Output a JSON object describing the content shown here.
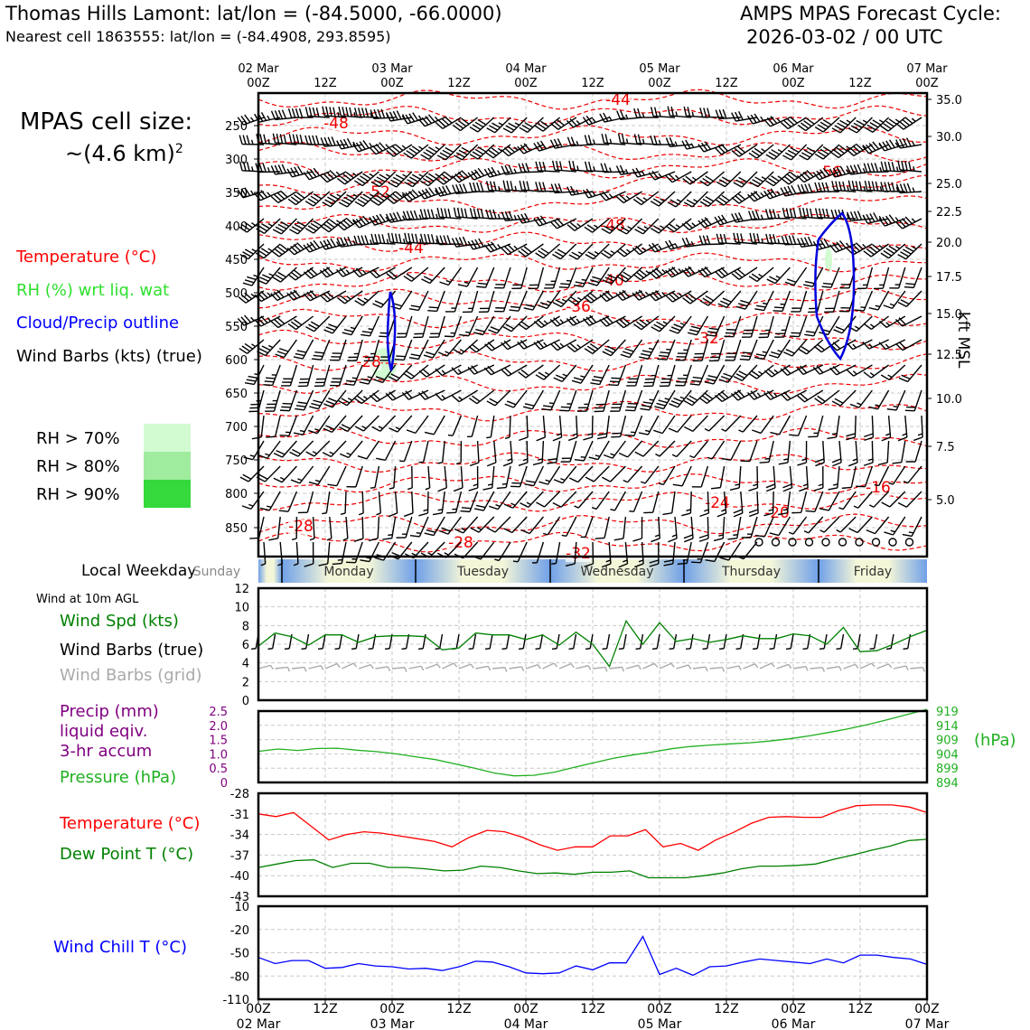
{
  "header": {
    "title_left": "Thomas Hills Lamont: lat/lon = (-84.5000, -66.0000)",
    "subtitle_left": "Nearest cell 1863555: lat/lon = (-84.4908, 293.8595)",
    "title_right_1": "AMPS MPAS Forecast Cycle:",
    "title_right_2": "2026-03-02 / 00 UTC"
  },
  "sidebar": {
    "cell_size_label": "MPAS cell size:",
    "cell_size_value": "~(4.6 km)",
    "cell_size_exp": "2",
    "legend_temp": "Temperature (°C)",
    "legend_rh": "RH (%) wrt liq. wat",
    "legend_cloud": "Cloud/Precip outline",
    "legend_wind": "Wind Barbs (kts) (true)",
    "rh_levels": [
      {
        "label": "RH > 70%",
        "color": "#d2fbd2"
      },
      {
        "label": "RH > 80%",
        "color": "#a0ec9f"
      },
      {
        "label": "RH > 90%",
        "color": "#35d93b"
      }
    ],
    "weekday_label": "Local Weekday",
    "wind_10m": "Wind at 10m AGL",
    "wind_spd": "Wind Spd (kts)",
    "wind_barbs_true": "Wind Barbs (true)",
    "wind_barbs_grid": "Wind Barbs (grid)",
    "precip_1": "Precip (mm)",
    "precip_2": "liquid eqiv.",
    "precip_3": "3-hr accum",
    "pressure": "Pressure (hPa)",
    "temp": "Temperature (°C)",
    "dewpt": "Dew Point T (°C)",
    "windchill": "Wind Chill T (°C)"
  },
  "colors": {
    "temperature": "#ff0000",
    "rh": "#2ecc40",
    "cloud": "#0000dd",
    "wind": "#000000",
    "wind_grid": "#aaaaaa",
    "precip": "#800080",
    "pressure": "#20b020",
    "dewpoint": "#008000",
    "windchill": "#0000ff"
  },
  "time_axis": {
    "top_ticks": [
      {
        "d": "02 Mar",
        "t": "00Z"
      },
      {
        "d": "",
        "t": "12Z"
      },
      {
        "d": "03 Mar",
        "t": "00Z"
      },
      {
        "d": "",
        "t": "12Z"
      },
      {
        "d": "04 Mar",
        "t": "00Z"
      },
      {
        "d": "",
        "t": "12Z"
      },
      {
        "d": "05 Mar",
        "t": "00Z"
      },
      {
        "d": "",
        "t": "12Z"
      },
      {
        "d": "06 Mar",
        "t": "00Z"
      },
      {
        "d": "",
        "t": "12Z"
      },
      {
        "d": "07 Mar",
        "t": "00Z"
      }
    ],
    "weekdays": [
      "Sunday",
      "Monday",
      "Tuesday",
      "Wednesday",
      "Thursday",
      "Friday"
    ]
  },
  "chart_data": [
    {
      "type": "contour",
      "name": "cross-section",
      "y_left_ticks": [
        "250",
        "300",
        "350",
        "400",
        "450",
        "500",
        "550",
        "600",
        "650",
        "700",
        "750",
        "800",
        "850"
      ],
      "y_right_ticks": [
        "35.0",
        "30.0",
        "25.0",
        "22.5",
        "20.0",
        "17.5",
        "15.0",
        "12.5",
        "10.0",
        "7.5",
        "5.0"
      ],
      "y_right_label": "kft MSL",
      "contour_labels": [
        "-44",
        "-48",
        "-56",
        "-52",
        "-48",
        "-44",
        "-40",
        "-36",
        "-32",
        "-28",
        "-24",
        "-20",
        "-16",
        "-28",
        "-28",
        "-32"
      ],
      "rh_shading": "RH > 70% patches near 03 Mar 00Z at 600 hPa and near 06 Mar 12Z at 450 hPa",
      "cloud_outlines": "two thin cloud outlines: 03 Mar 00Z (500–600 hPa) and 06 Mar 06Z–12Z (400–600 hPa)"
    },
    {
      "type": "line",
      "name": "wind-speed",
      "ylim": [
        0,
        12
      ],
      "yticks": [
        "0",
        "2",
        "4",
        "6",
        "8",
        "10",
        "12"
      ],
      "x_hours": [
        0,
        3,
        6,
        9,
        12,
        15,
        18,
        21,
        24,
        27,
        30,
        33,
        36,
        39,
        42,
        45,
        48,
        51,
        54,
        57,
        60,
        63,
        66,
        69,
        72,
        75,
        78,
        81,
        84,
        87,
        90,
        93,
        96,
        99,
        102,
        105,
        108,
        111,
        114,
        117,
        120
      ],
      "series": [
        {
          "values": [
            5.8,
            7.2,
            6.8,
            5.9,
            7.0,
            7.0,
            6.2,
            6.8,
            6.9,
            6.9,
            6.8,
            5.4,
            5.6,
            7.2,
            7.0,
            7.0,
            6.5,
            7.0,
            5.9,
            7.3,
            6.0,
            3.6,
            8.5,
            6.0,
            8.3,
            6.3,
            6.6,
            6.2,
            6.5,
            6.9,
            6.6,
            6.6,
            7.1,
            6.9,
            6.0,
            7.8,
            5.2,
            5.3,
            6.0,
            6.8,
            7.5
          ]
        }
      ]
    },
    {
      "type": "line",
      "name": "precip-pressure",
      "y_left_ticks": [
        "0",
        "0.5",
        "1.0",
        "1.5",
        "2.0",
        "2.5"
      ],
      "y_right_ticks": [
        "894",
        "899",
        "904",
        "909",
        "914",
        "919"
      ],
      "y_right_label": "(hPa)",
      "series": [
        {
          "values": [
            904.9,
            905.7,
            905.2,
            905.9,
            906.0,
            905.3,
            904.8,
            904.0,
            903.0,
            902.0,
            900.5,
            899.0,
            897.3,
            896.3,
            896.5,
            897.5,
            899.2,
            900.8,
            902.4,
            903.6,
            904.6,
            905.8,
            906.6,
            907.1,
            907.5,
            907.9,
            908.5,
            909.3,
            910.3,
            911.5,
            912.8,
            914.3,
            916.0,
            917.8,
            919.6
          ]
        }
      ],
      "pressure_ylim": [
        894,
        919
      ]
    },
    {
      "type": "line",
      "name": "temperature-dewpoint",
      "ylim": [
        -43,
        -28
      ],
      "yticks": [
        "-28",
        "-31",
        "-34",
        "-37",
        "-40",
        "-43"
      ],
      "series": [
        {
          "name": "Temperature",
          "values": [
            -31.0,
            -31.4,
            -30.8,
            -32.8,
            -34.8,
            -34.0,
            -33.6,
            -33.8,
            -34.2,
            -34.6,
            -35.0,
            -35.8,
            -34.4,
            -33.4,
            -33.6,
            -34.4,
            -35.5,
            -36.3,
            -35.8,
            -35.8,
            -34.2,
            -34.2,
            -33.3,
            -35.8,
            -35.3,
            -36.3,
            -34.8,
            -33.7,
            -32.4,
            -31.5,
            -31.4,
            -31.5,
            -31.5,
            -30.5,
            -29.8,
            -29.7,
            -29.7,
            -30.0,
            -30.8
          ]
        },
        {
          "name": "Dew Point",
          "values": [
            -38.8,
            -38.3,
            -37.8,
            -37.7,
            -38.8,
            -38.2,
            -38.2,
            -38.8,
            -38.8,
            -39.0,
            -39.3,
            -39.2,
            -38.6,
            -38.8,
            -39.3,
            -39.7,
            -39.6,
            -39.8,
            -39.5,
            -39.5,
            -39.3,
            -40.3,
            -40.3,
            -40.3,
            -40.0,
            -39.6,
            -39.0,
            -38.6,
            -38.6,
            -38.5,
            -38.3,
            -37.6,
            -37.0,
            -36.3,
            -35.7,
            -34.9,
            -34.7
          ]
        }
      ]
    },
    {
      "type": "line",
      "name": "wind-chill",
      "ylim": [
        -110,
        10
      ],
      "yticks": [
        "10",
        "-20",
        "-50",
        "-80",
        "-110"
      ],
      "series": [
        {
          "name": "Wind Chill",
          "values": [
            -56,
            -64,
            -60,
            -60,
            -70,
            -69,
            -64,
            -67,
            -68,
            -71,
            -70,
            -73,
            -68,
            -61,
            -62,
            -68,
            -76,
            -77,
            -76,
            -67,
            -72,
            -63,
            -63,
            -29,
            -78,
            -70,
            -79,
            -68,
            -67,
            -62,
            -58,
            -60,
            -62,
            -64,
            -58,
            -63,
            -53,
            -53,
            -56,
            -58,
            -65
          ]
        }
      ]
    }
  ],
  "bottom_axis": {
    "ticks": [
      {
        "t": "00Z",
        "d": "02 Mar"
      },
      {
        "t": "12Z",
        "d": ""
      },
      {
        "t": "00Z",
        "d": "03 Mar"
      },
      {
        "t": "12Z",
        "d": ""
      },
      {
        "t": "00Z",
        "d": "04 Mar"
      },
      {
        "t": "12Z",
        "d": ""
      },
      {
        "t": "00Z",
        "d": "05 Mar"
      },
      {
        "t": "12Z",
        "d": ""
      },
      {
        "t": "00Z",
        "d": "06 Mar"
      },
      {
        "t": "12Z",
        "d": ""
      },
      {
        "t": "00Z",
        "d": "07 Mar"
      }
    ]
  }
}
